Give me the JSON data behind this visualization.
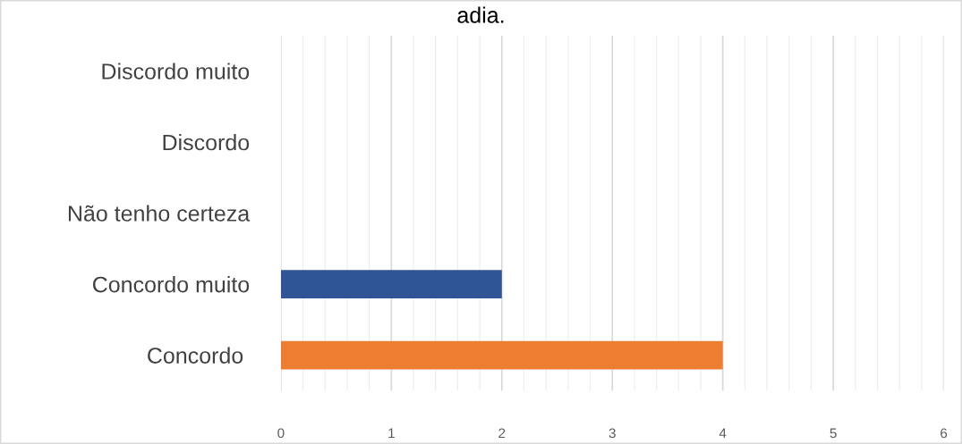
{
  "chart_data": {
    "type": "bar",
    "orientation": "horizontal",
    "title": "adia.",
    "categories": [
      "Discordo muito",
      "Discordo",
      "Não tenho certeza",
      "Concordo muito",
      "Concordo "
    ],
    "values": [
      0,
      0,
      0,
      2,
      4
    ],
    "colors": [
      "#2f5597",
      "#2f5597",
      "#2f5597",
      "#2f5597",
      "#ed7d31"
    ],
    "xlim": [
      0,
      6
    ],
    "xticks": [
      0,
      {
        "value": 0.2,
        "label": null
      },
      {
        "value": 0.4,
        "label": null
      },
      {
        "value": 0.6,
        "label": null
      },
      {
        "value": 0.8,
        "label": null
      },
      1,
      {
        "value": 1.2,
        "label": null
      },
      {
        "value": 1.4,
        "label": null
      },
      {
        "value": 1.6,
        "label": null
      },
      {
        "value": 1.8,
        "label": null
      },
      2,
      {
        "value": 2.2,
        "label": null
      },
      {
        "value": 2.4,
        "label": null
      },
      {
        "value": 2.6,
        "label": null
      },
      {
        "value": 2.8,
        "label": null
      },
      3,
      {
        "value": 3.2,
        "label": null
      },
      {
        "value": 3.4,
        "label": null
      },
      {
        "value": 3.6,
        "label": null
      },
      {
        "value": 3.8,
        "label": null
      },
      4,
      {
        "value": 4.2,
        "label": null
      },
      {
        "value": 4.4,
        "label": null
      },
      {
        "value": 4.6,
        "label": null
      },
      {
        "value": 4.8,
        "label": null
      },
      5,
      {
        "value": 5.2,
        "label": null
      },
      {
        "value": 5.4,
        "label": null
      },
      {
        "value": 5.6,
        "label": null
      },
      {
        "value": 5.8,
        "label": null
      },
      6
    ],
    "grid": "x"
  }
}
